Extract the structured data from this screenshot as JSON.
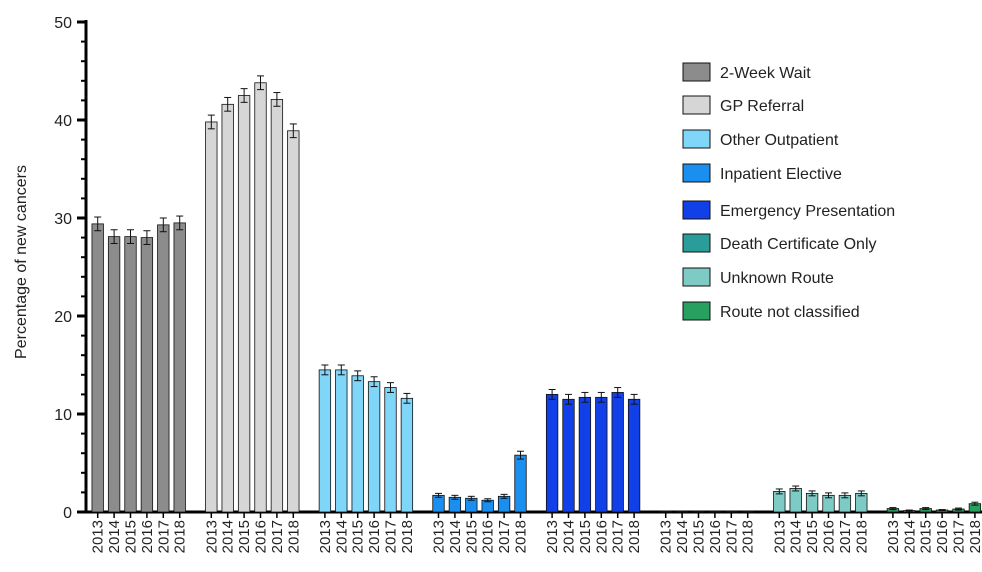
{
  "chart_data": {
    "type": "bar",
    "ylabel": "Percentage of new cancers",
    "xlabel": "",
    "ylim": [
      0,
      50
    ],
    "yticks": [
      0,
      10,
      20,
      30,
      40,
      50
    ],
    "years": [
      "2013",
      "2014",
      "2015",
      "2016",
      "2017",
      "2018"
    ],
    "legend_position": "top-right",
    "error_bars": true,
    "series": [
      {
        "name": "2-Week Wait",
        "color": "#8c8c8c",
        "values": [
          29.4,
          28.1,
          28.1,
          28.0,
          29.3,
          29.5
        ],
        "errors": [
          0.7,
          0.7,
          0.7,
          0.7,
          0.7,
          0.7
        ]
      },
      {
        "name": "GP Referral",
        "color": "#d6d6d6",
        "values": [
          39.8,
          41.6,
          42.5,
          43.8,
          42.1,
          38.9
        ],
        "errors": [
          0.7,
          0.7,
          0.7,
          0.7,
          0.7,
          0.7
        ]
      },
      {
        "name": "Other Outpatient",
        "color": "#7fd6f9",
        "values": [
          14.5,
          14.5,
          13.9,
          13.3,
          12.7,
          11.6
        ],
        "errors": [
          0.5,
          0.5,
          0.5,
          0.5,
          0.5,
          0.5
        ]
      },
      {
        "name": "Inpatient Elective",
        "color": "#1a8ff0",
        "values": [
          1.7,
          1.5,
          1.4,
          1.2,
          1.6,
          5.8
        ],
        "errors": [
          0.2,
          0.2,
          0.2,
          0.15,
          0.2,
          0.4
        ]
      },
      {
        "name": "Emergency Presentation",
        "color": "#1240e8",
        "values": [
          12.0,
          11.5,
          11.7,
          11.7,
          12.2,
          11.5
        ],
        "errors": [
          0.5,
          0.5,
          0.5,
          0.5,
          0.5,
          0.5
        ]
      },
      {
        "name": "Death Certificate Only",
        "color": "#2a9d9b",
        "values": [
          0.05,
          0.03,
          0.03,
          0.03,
          0.03,
          0.03
        ],
        "errors": [
          0.05,
          0.03,
          0.03,
          0.03,
          0.03,
          0.03
        ]
      },
      {
        "name": "Unknown Route",
        "color": "#7ecbc6",
        "values": [
          2.1,
          2.4,
          1.9,
          1.7,
          1.7,
          1.9
        ],
        "errors": [
          0.25,
          0.25,
          0.25,
          0.25,
          0.25,
          0.25
        ]
      },
      {
        "name": "Route not classified",
        "color": "#27a060",
        "values": [
          0.35,
          0.15,
          0.35,
          0.2,
          0.3,
          0.85
        ],
        "errors": [
          0.1,
          0.05,
          0.1,
          0.05,
          0.1,
          0.15
        ]
      }
    ]
  }
}
